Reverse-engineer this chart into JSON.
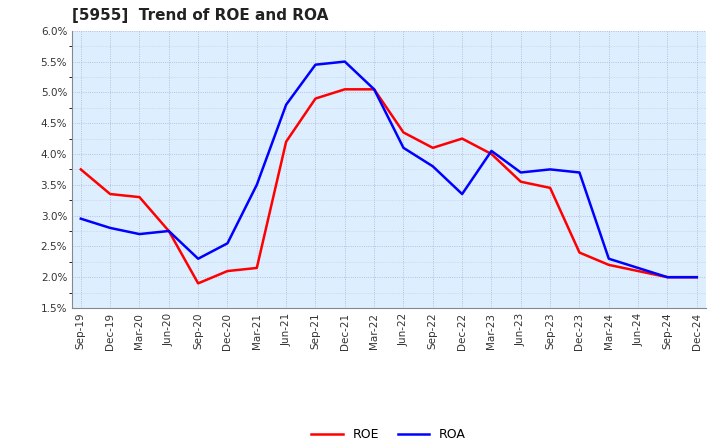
{
  "title": "[5955]  Trend of ROE and ROA",
  "labels": [
    "Sep-19",
    "Dec-19",
    "Mar-20",
    "Jun-20",
    "Sep-20",
    "Dec-20",
    "Mar-21",
    "Jun-21",
    "Sep-21",
    "Dec-21",
    "Mar-22",
    "Jun-22",
    "Sep-22",
    "Dec-22",
    "Mar-23",
    "Jun-23",
    "Sep-23",
    "Dec-23",
    "Mar-24",
    "Jun-24",
    "Sep-24",
    "Dec-24"
  ],
  "ROE": [
    3.75,
    3.35,
    3.3,
    2.75,
    1.9,
    2.1,
    2.15,
    4.2,
    4.9,
    5.05,
    5.05,
    4.35,
    4.1,
    4.25,
    4.0,
    3.55,
    3.45,
    2.4,
    2.2,
    2.1,
    2.0,
    2.0
  ],
  "ROA": [
    2.95,
    2.8,
    2.7,
    2.75,
    2.3,
    2.55,
    3.5,
    4.8,
    5.45,
    5.5,
    5.05,
    4.1,
    3.8,
    3.35,
    4.05,
    3.7,
    3.75,
    3.7,
    2.3,
    2.15,
    2.0,
    2.0
  ],
  "roe_color": "#FF0000",
  "roa_color": "#0000FF",
  "ylim": [
    1.5,
    6.0
  ],
  "yticks": [
    1.5,
    2.0,
    2.5,
    3.0,
    3.5,
    4.0,
    4.5,
    5.0,
    5.5,
    6.0
  ],
  "bg_color": "#FFFFFF",
  "plot_bg_color": "#DDEEFF",
  "grid_color": "#AAAACC",
  "title_fontsize": 11,
  "legend_fontsize": 9,
  "tick_fontsize": 7.5,
  "linewidth": 1.8
}
